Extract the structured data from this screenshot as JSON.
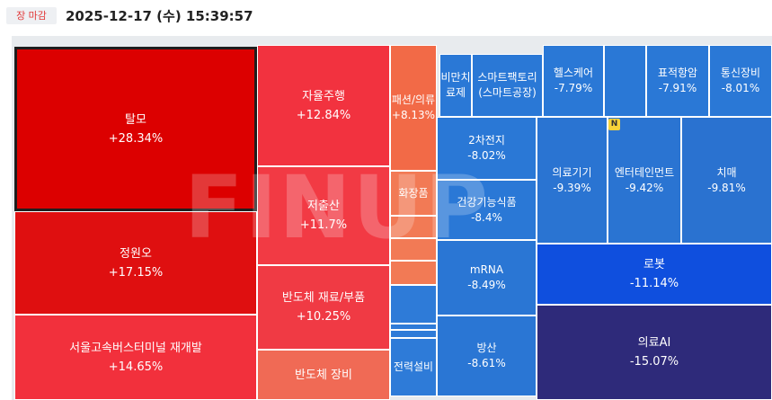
{
  "header": {
    "status_badge": "장 마감",
    "timestamp": "2025-12-17 (수) 15:39:57"
  },
  "watermark": "FINUP",
  "new_badge": "N",
  "chart_data": {
    "type": "treemap",
    "title": "",
    "tiles": [
      {
        "name": "탈모",
        "change": "+28.34%",
        "value": 28.34,
        "color": "#dc0000"
      },
      {
        "name": "정원오",
        "change": "+17.15%",
        "value": 17.15,
        "color": "#df0f10"
      },
      {
        "name": "서울고속버스터미널 재개발",
        "change": "+14.65%",
        "value": 14.65,
        "color": "#f2303c"
      },
      {
        "name": "자율주행",
        "change": "+12.84%",
        "value": 12.84,
        "color": "#f2323f"
      },
      {
        "name": "저출산",
        "change": "+11.7%",
        "value": 11.7,
        "color": "#f23a44"
      },
      {
        "name": "반도체 재료/부품",
        "change": "+10.25%",
        "value": 10.25,
        "color": "#f03a44"
      },
      {
        "name": "반도체 장비",
        "change": "",
        "value": null,
        "color": "#f06a55"
      },
      {
        "name": "패션/의류",
        "change": "+8.13%",
        "value": 8.13,
        "color": "#f26a47"
      },
      {
        "name": "화장품",
        "change": "",
        "value": null,
        "color": "#f27a55"
      },
      {
        "name": "",
        "change": "",
        "value": null,
        "color": "#f27a55"
      },
      {
        "name": "",
        "change": "",
        "value": null,
        "color": "#f27a55"
      },
      {
        "name": "",
        "change": "",
        "value": null,
        "color": "#f27a55"
      },
      {
        "name": "",
        "change": "",
        "value": null,
        "color": "#2e7bd8"
      },
      {
        "name": "",
        "change": "",
        "value": null,
        "color": "#2e7bd8"
      },
      {
        "name": "",
        "change": "",
        "value": null,
        "color": "#2e7bd8"
      },
      {
        "name": "전력설비",
        "change": "",
        "value": null,
        "color": "#2e7bd8"
      },
      {
        "name": "비만치료제",
        "change": "",
        "value": null,
        "color": "#2a78d6"
      },
      {
        "name": "스마트팩토리(스마트공장)",
        "change": "",
        "value": null,
        "color": "#2a78d6"
      },
      {
        "name": "헬스케어",
        "change": "-7.79%",
        "value": -7.79,
        "color": "#2a78d6"
      },
      {
        "name": "",
        "change": "",
        "value": null,
        "color": "#2a78d6"
      },
      {
        "name": "표적항암",
        "change": "-7.91%",
        "value": -7.91,
        "color": "#2a78d6"
      },
      {
        "name": "통신장비",
        "change": "-8.01%",
        "value": -8.01,
        "color": "#2a78d6"
      },
      {
        "name": "2차전지",
        "change": "-8.02%",
        "value": -8.02,
        "color": "#2a78d6"
      },
      {
        "name": "건강기능식품",
        "change": "-8.4%",
        "value": -8.4,
        "color": "#2a78d6"
      },
      {
        "name": "mRNA",
        "change": "-8.49%",
        "value": -8.49,
        "color": "#2a76d4"
      },
      {
        "name": "방산",
        "change": "-8.61%",
        "value": -8.61,
        "color": "#2a76d4"
      },
      {
        "name": "의료기기",
        "change": "-9.39%",
        "value": -9.39,
        "color": "#2a74d2"
      },
      {
        "name": "엔터테인먼트",
        "change": "-9.42%",
        "value": -9.42,
        "color": "#2a74d2"
      },
      {
        "name": "치매",
        "change": "-9.81%",
        "value": -9.81,
        "color": "#2a72d0"
      },
      {
        "name": "로봇",
        "change": "-11.14%",
        "value": -11.14,
        "color": "#0f4fde"
      },
      {
        "name": "의료AI",
        "change": "-15.07%",
        "value": -15.07,
        "color": "#2e2a7a"
      }
    ]
  }
}
